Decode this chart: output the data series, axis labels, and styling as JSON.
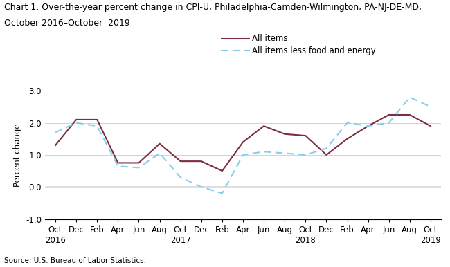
{
  "title_line1": "Chart 1. Over-the-year percent change in CPI-U, Philadelphia-Camden-Wilmington, PA-NJ-DE-MD,",
  "title_line2": "October 2016–October  2019",
  "ylabel": "Percent change",
  "source": "Source: U.S. Bureau of Labor Statistics.",
  "x_labels": [
    "Oct\n2016",
    "Dec",
    "Feb",
    "Apr",
    "Jun",
    "Aug",
    "Oct\n2017",
    "Dec",
    "Feb",
    "Apr",
    "Jun",
    "Aug",
    "Oct\n2018",
    "Dec",
    "Feb",
    "Apr",
    "Jun",
    "Aug",
    "Oct\n2019"
  ],
  "all_items": [
    1.3,
    2.1,
    2.1,
    0.75,
    0.75,
    1.35,
    0.8,
    0.8,
    0.5,
    1.4,
    1.9,
    1.65,
    1.6,
    1.0,
    1.5,
    1.9,
    2.25,
    2.25,
    1.9
  ],
  "less_food_energy": [
    1.7,
    2.0,
    1.9,
    0.65,
    0.6,
    1.05,
    0.3,
    0.0,
    -0.2,
    1.0,
    1.1,
    1.05,
    1.0,
    1.2,
    2.0,
    1.9,
    2.0,
    2.8,
    2.5
  ],
  "all_items_color": "#7B2D42",
  "less_food_energy_color": "#87CEEB",
  "ylim": [
    -1.0,
    3.0
  ],
  "yticks": [
    -1.0,
    0.0,
    1.0,
    2.0,
    3.0
  ],
  "all_items_label": "All items",
  "less_food_energy_label": "All items less food and energy",
  "title_fontsize": 9.0,
  "label_fontsize": 8.5,
  "tick_fontsize": 8.5,
  "source_fontsize": 7.5
}
